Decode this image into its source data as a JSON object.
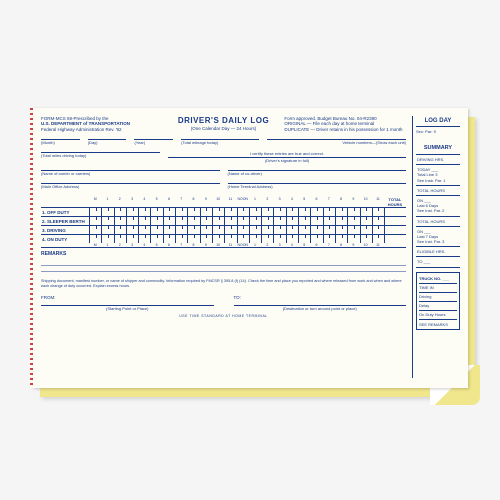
{
  "header": {
    "left_line1": "FORM-MCS 59-Prescribed by the",
    "left_line2": "U.S. DEPARTMENT of TRANSPORTATION",
    "left_line3": "Federal Highway Administration Rev. '92",
    "title": "DRIVER'S DAILY LOG",
    "subtitle": "(One Calendar Day — 24 Hours)",
    "right_line1": "Form approved. Budget Bureau No. 04-R2390",
    "right_line2": "ORIGINAL — File each day at home terminal",
    "right_line3": "DUPLICATE — Driver retains in his possession for 1 month"
  },
  "fields": {
    "month": "(Month)",
    "day": "(Day)",
    "year": "(Year)",
    "total_mileage": "(Total mileage today)",
    "vehicle_nums": "Vehicle numbers—(Show each unit)",
    "total_driving": "(Total miles driving today)",
    "certify": "I certify these entries are true and correct.",
    "driver_sig": "(Driver's signature in full)",
    "carrier": "(Name of carrier or carriers)",
    "codriver": "(Name of co-driver)",
    "main_office": "(Main Office Address)",
    "home_terminal": "(Home Terminal Address)"
  },
  "grid": {
    "col_total": "TOTAL HOURS",
    "hours": [
      "M",
      "1",
      "2",
      "3",
      "4",
      "5",
      "6",
      "7",
      "8",
      "9",
      "10",
      "11",
      "NOON",
      "1",
      "2",
      "3",
      "4",
      "5",
      "6",
      "7",
      "8",
      "9",
      "10",
      "11"
    ],
    "rows": [
      {
        "n": "1.",
        "label": "OFF DUTY"
      },
      {
        "n": "2.",
        "label": "SLEEPER BERTH"
      },
      {
        "n": "3.",
        "label": "DRIVING"
      },
      {
        "n": "4.",
        "label": "ON DUTY"
      }
    ],
    "remarks": "REMARKS"
  },
  "footer": {
    "note": "Shipping document, manifest number, or name of shipper and commodity. Information required by FMCSR § 395.8 (f) (14). Check the time and place you reported and where released from work and when and where each change of duty occurred. Explain excess hours.",
    "from": "FROM:",
    "to": "TO:",
    "start": "(Starting Point or Place)",
    "dest": "(Destination or turn around point or place)",
    "bottom": "USE TIME STANDARD AT HOME TERMINAL"
  },
  "logday": {
    "title": "LOG DAY",
    "sec": "Sec:  Par: 9",
    "summary": "SUMMARY",
    "rows": [
      "DRIVING HRS.",
      "TODAY ___\nTotal Line 3\nSee Instr. Par. 1",
      "TOTAL HOURS",
      "ON ___\nLast 6 Days\nSee Inst. Par. 2",
      "TOTAL HOURS",
      "ON ___\nLast 7 Days\nSee Inst. Par. 3",
      "ELIGIBLE HRS.",
      "TO ___"
    ],
    "truck": {
      "title": "TRUCK NO. ___",
      "rows": [
        "TIME IN",
        "Driving",
        "Delay",
        "On Duty Hours",
        "SEE REMARKS"
      ]
    }
  }
}
